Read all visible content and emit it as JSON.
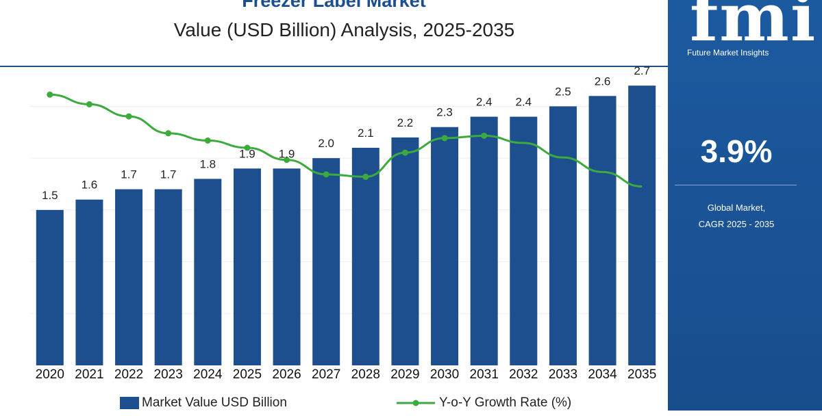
{
  "header": {
    "title": "Freezer Label Market",
    "subtitle": "Value (USD Billion) Analysis, 2025-2035"
  },
  "sidebar": {
    "logo_mark": "fmi",
    "logo_text": "Future Market Insights",
    "cagr_value": "3.9%",
    "cagr_label_line1": "Global Market,",
    "cagr_label_line2": "CAGR 2025 - 2035"
  },
  "colors": {
    "bar": "#1d4f8f",
    "line": "#3caa3c",
    "panel": "#1c5aa0",
    "divider": "#1d4f8f"
  },
  "chart_data": {
    "type": "bar",
    "categories": [
      "2020",
      "2021",
      "2022",
      "2023",
      "2024",
      "2025",
      "2026",
      "2027",
      "2028",
      "2029",
      "2030",
      "2031",
      "2032",
      "2033",
      "2034",
      "2035"
    ],
    "series": [
      {
        "name": "Market Value USD Billion",
        "type": "bar",
        "values": [
          1.5,
          1.6,
          1.7,
          1.7,
          1.8,
          1.9,
          1.9,
          2.0,
          2.1,
          2.2,
          2.3,
          2.4,
          2.4,
          2.5,
          2.6,
          2.7
        ],
        "labels": [
          "1.5",
          "1.6",
          "1.7",
          "1.7",
          "1.8",
          "1.9",
          "1.9",
          "2.0",
          "2.1",
          "2.2",
          "2.3",
          "2.4",
          "2.4",
          "2.5",
          "2.6",
          "2.7"
        ]
      },
      {
        "name": "Y-o-Y Growth Rate (%)",
        "type": "line",
        "values": [
          7.2,
          6.8,
          6.3,
          5.6,
          5.3,
          5.0,
          4.5,
          3.9,
          3.8,
          4.8,
          5.4,
          5.5,
          5.2,
          4.6,
          4.0,
          3.4
        ]
      }
    ],
    "ylim": [
      0,
      2.8
    ],
    "line_ylim": [
      -4,
      8
    ],
    "grid": true,
    "legend_position": "bottom"
  },
  "legend": {
    "bar_label": "Market Value USD Billion",
    "line_label": "Y-o-Y Growth Rate (%)"
  }
}
